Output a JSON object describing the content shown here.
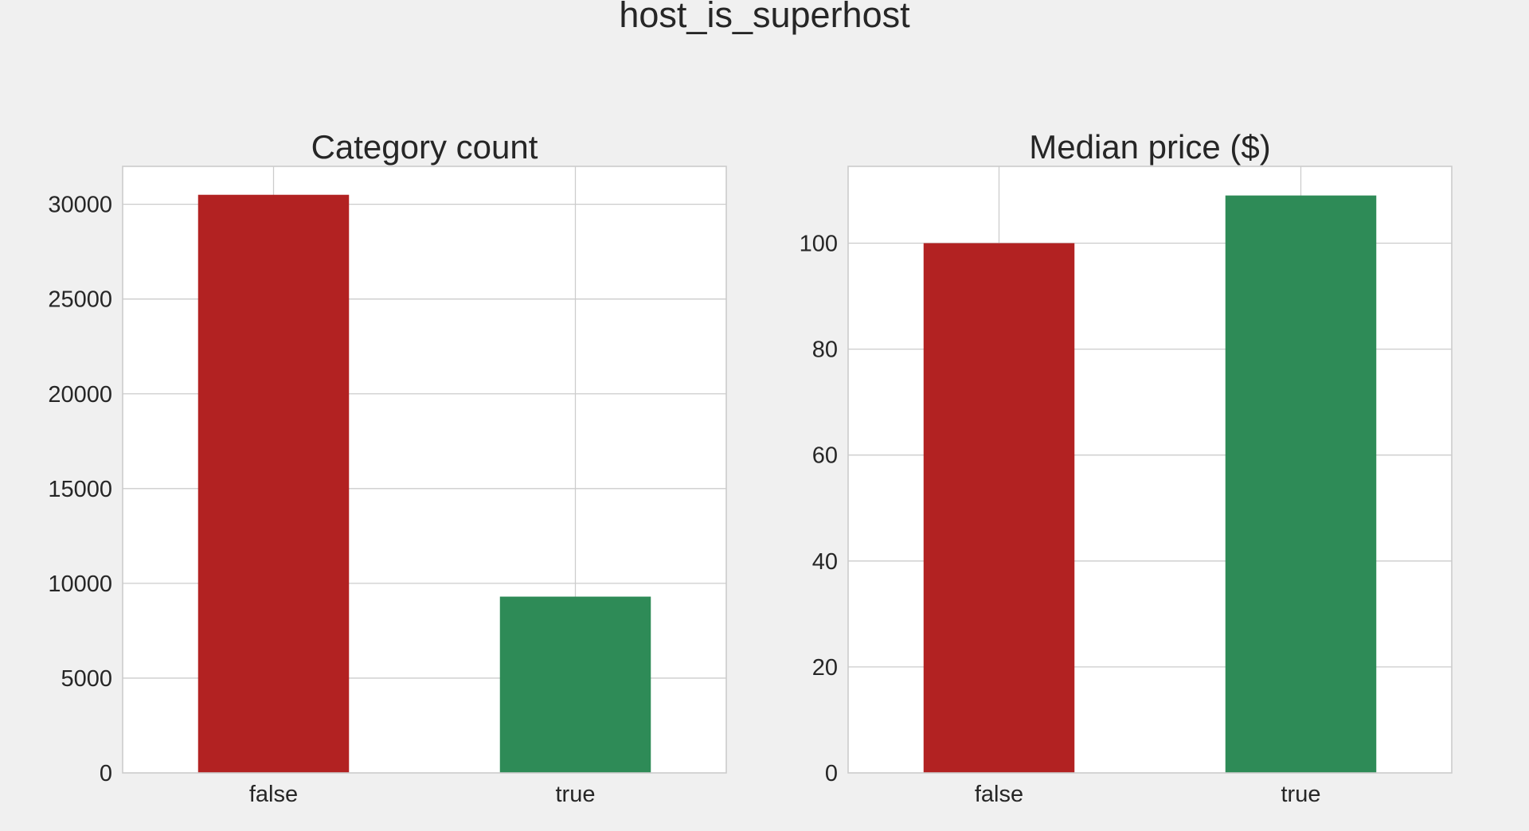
{
  "suptitle": "host_is_superhost",
  "chart_data": [
    {
      "type": "bar",
      "title": "Category count",
      "categories": [
        "false",
        "true"
      ],
      "values": [
        30500,
        9300
      ],
      "colors": [
        "#b22222",
        "#2e8b57"
      ],
      "ylim": [
        0,
        32000
      ],
      "yticks": [
        0,
        5000,
        10000,
        15000,
        20000,
        25000,
        30000
      ],
      "grid": true,
      "legend": false,
      "xlabel": "",
      "ylabel": ""
    },
    {
      "type": "bar",
      "title": "Median price ($)",
      "categories": [
        "false",
        "true"
      ],
      "values": [
        100,
        109
      ],
      "colors": [
        "#b22222",
        "#2e8b57"
      ],
      "ylim": [
        0,
        114.5
      ],
      "yticks": [
        0,
        20,
        40,
        60,
        80,
        100
      ],
      "grid": true,
      "legend": false,
      "xlabel": "",
      "ylabel": ""
    }
  ]
}
